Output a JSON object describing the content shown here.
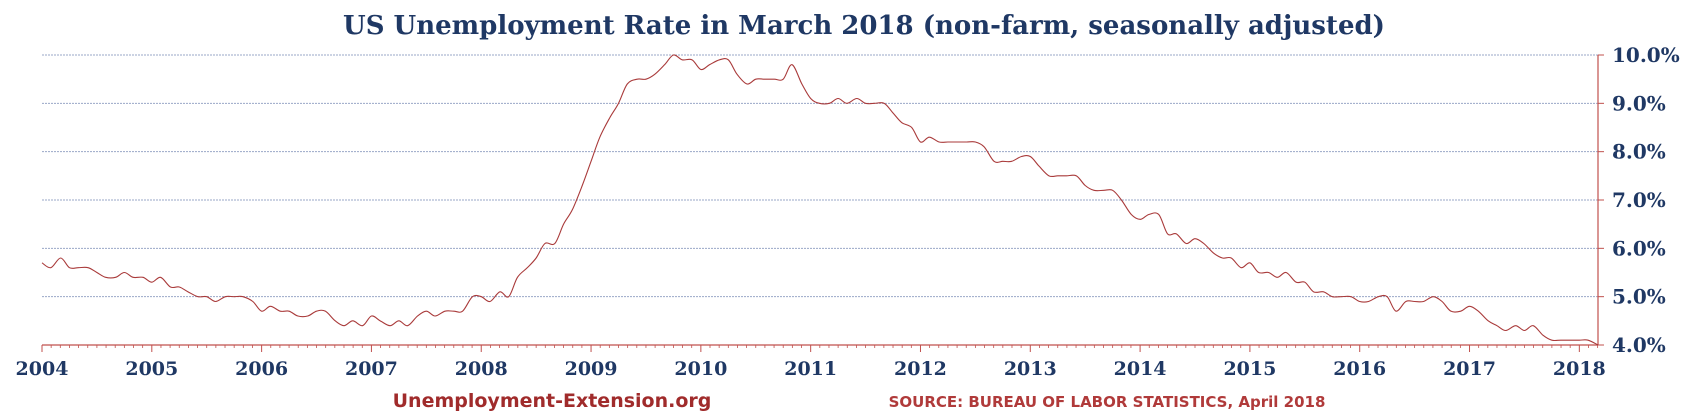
{
  "chart_data": {
    "type": "line",
    "title": "US Unemployment Rate in March 2018 (non-farm, seasonally adjusted)",
    "xlabel": "",
    "ylabel": "",
    "xlim": [
      2004,
      2018.17
    ],
    "ylim": [
      4.0,
      10.0
    ],
    "x_ticks": [
      "2004",
      "2005",
      "2006",
      "2007",
      "2008",
      "2009",
      "2010",
      "2011",
      "2012",
      "2013",
      "2014",
      "2015",
      "2016",
      "2017",
      "2018"
    ],
    "y_ticks": [
      "4.0%",
      "5.0%",
      "6.0%",
      "7.0%",
      "8.0%",
      "9.0%",
      "10.0%"
    ],
    "grid": "horizontal",
    "legend": "none",
    "series": [
      {
        "color": "#a93a3a",
        "points": [
          [
            2004.0,
            5.7
          ],
          [
            2004.08,
            5.6
          ],
          [
            2004.17,
            5.8
          ],
          [
            2004.25,
            5.6
          ],
          [
            2004.33,
            5.6
          ],
          [
            2004.42,
            5.6
          ],
          [
            2004.5,
            5.5
          ],
          [
            2004.58,
            5.4
          ],
          [
            2004.67,
            5.4
          ],
          [
            2004.75,
            5.5
          ],
          [
            2004.83,
            5.4
          ],
          [
            2004.92,
            5.4
          ],
          [
            2005.0,
            5.3
          ],
          [
            2005.08,
            5.4
          ],
          [
            2005.17,
            5.2
          ],
          [
            2005.25,
            5.2
          ],
          [
            2005.33,
            5.1
          ],
          [
            2005.42,
            5.0
          ],
          [
            2005.5,
            5.0
          ],
          [
            2005.58,
            4.9
          ],
          [
            2005.67,
            5.0
          ],
          [
            2005.75,
            5.0
          ],
          [
            2005.83,
            5.0
          ],
          [
            2005.92,
            4.9
          ],
          [
            2006.0,
            4.7
          ],
          [
            2006.08,
            4.8
          ],
          [
            2006.17,
            4.7
          ],
          [
            2006.25,
            4.7
          ],
          [
            2006.33,
            4.6
          ],
          [
            2006.42,
            4.6
          ],
          [
            2006.5,
            4.7
          ],
          [
            2006.58,
            4.7
          ],
          [
            2006.67,
            4.5
          ],
          [
            2006.75,
            4.4
          ],
          [
            2006.83,
            4.5
          ],
          [
            2006.92,
            4.4
          ],
          [
            2007.0,
            4.6
          ],
          [
            2007.08,
            4.5
          ],
          [
            2007.17,
            4.4
          ],
          [
            2007.25,
            4.5
          ],
          [
            2007.33,
            4.4
          ],
          [
            2007.42,
            4.6
          ],
          [
            2007.5,
            4.7
          ],
          [
            2007.58,
            4.6
          ],
          [
            2007.67,
            4.7
          ],
          [
            2007.75,
            4.7
          ],
          [
            2007.83,
            4.7
          ],
          [
            2007.92,
            5.0
          ],
          [
            2008.0,
            5.0
          ],
          [
            2008.08,
            4.9
          ],
          [
            2008.17,
            5.1
          ],
          [
            2008.25,
            5.0
          ],
          [
            2008.33,
            5.4
          ],
          [
            2008.42,
            5.6
          ],
          [
            2008.5,
            5.8
          ],
          [
            2008.58,
            6.1
          ],
          [
            2008.67,
            6.1
          ],
          [
            2008.75,
            6.5
          ],
          [
            2008.83,
            6.8
          ],
          [
            2008.92,
            7.3
          ],
          [
            2009.0,
            7.8
          ],
          [
            2009.08,
            8.3
          ],
          [
            2009.17,
            8.7
          ],
          [
            2009.25,
            9.0
          ],
          [
            2009.33,
            9.4
          ],
          [
            2009.42,
            9.5
          ],
          [
            2009.5,
            9.5
          ],
          [
            2009.58,
            9.6
          ],
          [
            2009.67,
            9.8
          ],
          [
            2009.75,
            10.0
          ],
          [
            2009.83,
            9.9
          ],
          [
            2009.92,
            9.9
          ],
          [
            2010.0,
            9.7
          ],
          [
            2010.08,
            9.8
          ],
          [
            2010.17,
            9.9
          ],
          [
            2010.25,
            9.9
          ],
          [
            2010.33,
            9.6
          ],
          [
            2010.42,
            9.4
          ],
          [
            2010.5,
            9.5
          ],
          [
            2010.58,
            9.5
          ],
          [
            2010.67,
            9.5
          ],
          [
            2010.75,
            9.5
          ],
          [
            2010.83,
            9.8
          ],
          [
            2010.92,
            9.4
          ],
          [
            2011.0,
            9.1
          ],
          [
            2011.08,
            9.0
          ],
          [
            2011.17,
            9.0
          ],
          [
            2011.25,
            9.1
          ],
          [
            2011.33,
            9.0
          ],
          [
            2011.42,
            9.1
          ],
          [
            2011.5,
            9.0
          ],
          [
            2011.58,
            9.0
          ],
          [
            2011.67,
            9.0
          ],
          [
            2011.75,
            8.8
          ],
          [
            2011.83,
            8.6
          ],
          [
            2011.92,
            8.5
          ],
          [
            2012.0,
            8.2
          ],
          [
            2012.08,
            8.3
          ],
          [
            2012.17,
            8.2
          ],
          [
            2012.25,
            8.2
          ],
          [
            2012.33,
            8.2
          ],
          [
            2012.42,
            8.2
          ],
          [
            2012.5,
            8.2
          ],
          [
            2012.58,
            8.1
          ],
          [
            2012.67,
            7.8
          ],
          [
            2012.75,
            7.8
          ],
          [
            2012.83,
            7.8
          ],
          [
            2012.92,
            7.9
          ],
          [
            2013.0,
            7.9
          ],
          [
            2013.08,
            7.7
          ],
          [
            2013.17,
            7.5
          ],
          [
            2013.25,
            7.5
          ],
          [
            2013.33,
            7.5
          ],
          [
            2013.42,
            7.5
          ],
          [
            2013.5,
            7.3
          ],
          [
            2013.58,
            7.2
          ],
          [
            2013.67,
            7.2
          ],
          [
            2013.75,
            7.2
          ],
          [
            2013.83,
            7.0
          ],
          [
            2013.92,
            6.7
          ],
          [
            2014.0,
            6.6
          ],
          [
            2014.08,
            6.7
          ],
          [
            2014.17,
            6.7
          ],
          [
            2014.25,
            6.3
          ],
          [
            2014.33,
            6.3
          ],
          [
            2014.42,
            6.1
          ],
          [
            2014.5,
            6.2
          ],
          [
            2014.58,
            6.1
          ],
          [
            2014.67,
            5.9
          ],
          [
            2014.75,
            5.8
          ],
          [
            2014.83,
            5.8
          ],
          [
            2014.92,
            5.6
          ],
          [
            2015.0,
            5.7
          ],
          [
            2015.08,
            5.5
          ],
          [
            2015.17,
            5.5
          ],
          [
            2015.25,
            5.4
          ],
          [
            2015.33,
            5.5
          ],
          [
            2015.42,
            5.3
          ],
          [
            2015.5,
            5.3
          ],
          [
            2015.58,
            5.1
          ],
          [
            2015.67,
            5.1
          ],
          [
            2015.75,
            5.0
          ],
          [
            2015.83,
            5.0
          ],
          [
            2015.92,
            5.0
          ],
          [
            2016.0,
            4.9
          ],
          [
            2016.08,
            4.9
          ],
          [
            2016.17,
            5.0
          ],
          [
            2016.25,
            5.0
          ],
          [
            2016.33,
            4.7
          ],
          [
            2016.42,
            4.9
          ],
          [
            2016.5,
            4.9
          ],
          [
            2016.58,
            4.9
          ],
          [
            2016.67,
            5.0
          ],
          [
            2016.75,
            4.9
          ],
          [
            2016.83,
            4.7
          ],
          [
            2016.92,
            4.7
          ],
          [
            2017.0,
            4.8
          ],
          [
            2017.08,
            4.7
          ],
          [
            2017.17,
            4.5
          ],
          [
            2017.25,
            4.4
          ],
          [
            2017.33,
            4.3
          ],
          [
            2017.42,
            4.4
          ],
          [
            2017.5,
            4.3
          ],
          [
            2017.58,
            4.4
          ],
          [
            2017.67,
            4.2
          ],
          [
            2017.75,
            4.1
          ],
          [
            2017.83,
            4.1
          ],
          [
            2017.92,
            4.1
          ],
          [
            2018.0,
            4.1
          ],
          [
            2018.08,
            4.1
          ],
          [
            2018.17,
            4.0
          ]
        ]
      }
    ],
    "colors": {
      "title": "#1f3864",
      "ticks": "#1f3864",
      "line": "#a93a3a",
      "axis": "#c0504d",
      "grid": "#9aa7c7"
    }
  },
  "footer": {
    "site": "Unemployment-Extension.org",
    "source": "SOURCE: BUREAU OF LABOR STATISTICS, April 2018"
  }
}
